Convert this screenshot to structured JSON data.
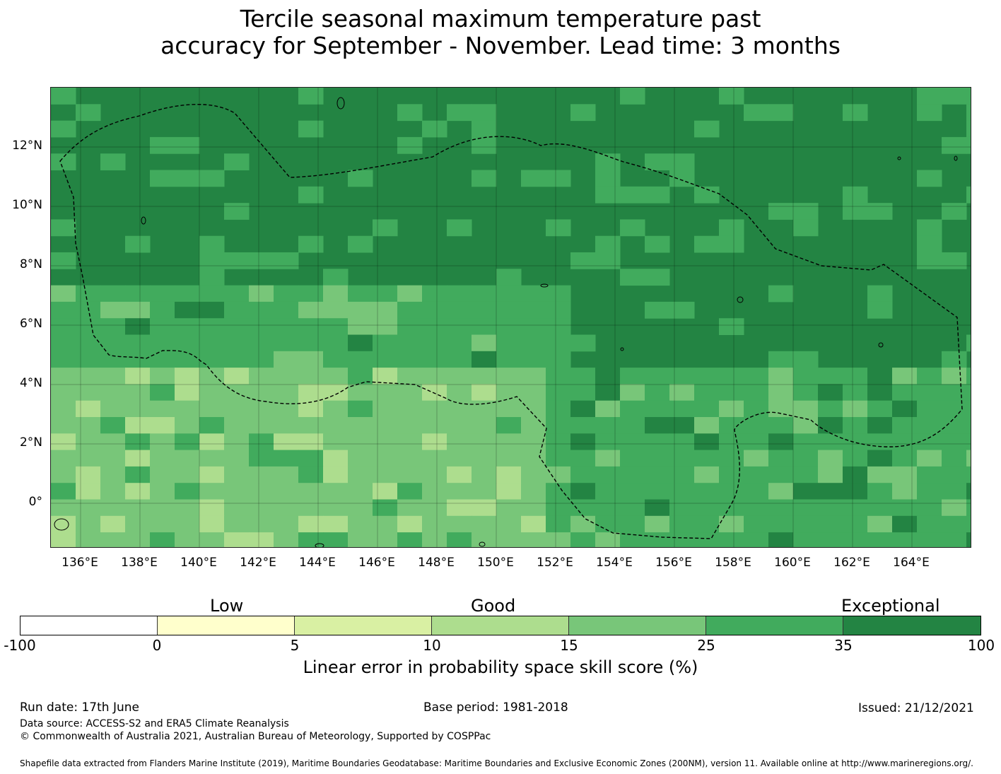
{
  "title": {
    "line1": "Tercile seasonal maximum temperature past",
    "line2": "accuracy for September - November. Lead time: 3 months"
  },
  "map": {
    "lat_labels": [
      "12°N",
      "10°N",
      "8°N",
      "6°N",
      "4°N",
      "2°N",
      "0°"
    ],
    "lon_labels": [
      "136°E",
      "138°E",
      "140°E",
      "142°E",
      "144°E",
      "146°E",
      "148°E",
      "150°E",
      "152°E",
      "154°E",
      "156°E",
      "158°E",
      "160°E",
      "162°E",
      "164°E"
    ],
    "extent": {
      "lon_min": 135,
      "lon_max": 166,
      "lat_min": -1.5,
      "lat_max": 14
    },
    "grid_resolution_deg": 0.833,
    "boundary_line": "dashed",
    "coastline_color": "#000000"
  },
  "colorbar": {
    "category_labels": {
      "low": "Low",
      "good": "Good",
      "exceptional": "Exceptional"
    },
    "ticks": [
      "-100",
      "0",
      "5",
      "10",
      "15",
      "25",
      "35",
      "100"
    ],
    "colors": [
      "#ffffff",
      "#ffffcc",
      "#d9f0a3",
      "#addd8e",
      "#78c679",
      "#41ab5d",
      "#238443"
    ],
    "title": "Linear error in probability space skill score (%)"
  },
  "footer": {
    "run_date": "Run date: 17th June",
    "base_period": "Base period: 1981-2018",
    "issued": "Issued: 21/12/2021",
    "data_source": "Data source: ACCESS-S2 and ERA5 Climate Reanalysis",
    "copyright": "© Commonwealth of Australia 2021, Australian Bureau of Meteorology, Supported by COSPPac",
    "shapefile": "Shapefile data extracted from Flanders Marine Institute (2019), Maritime Boundaries Geodatabase: Maritime Boundaries and Exclusive Economic Zones (200NM), version 11. Available online at http://www.marineregions.org/."
  }
}
